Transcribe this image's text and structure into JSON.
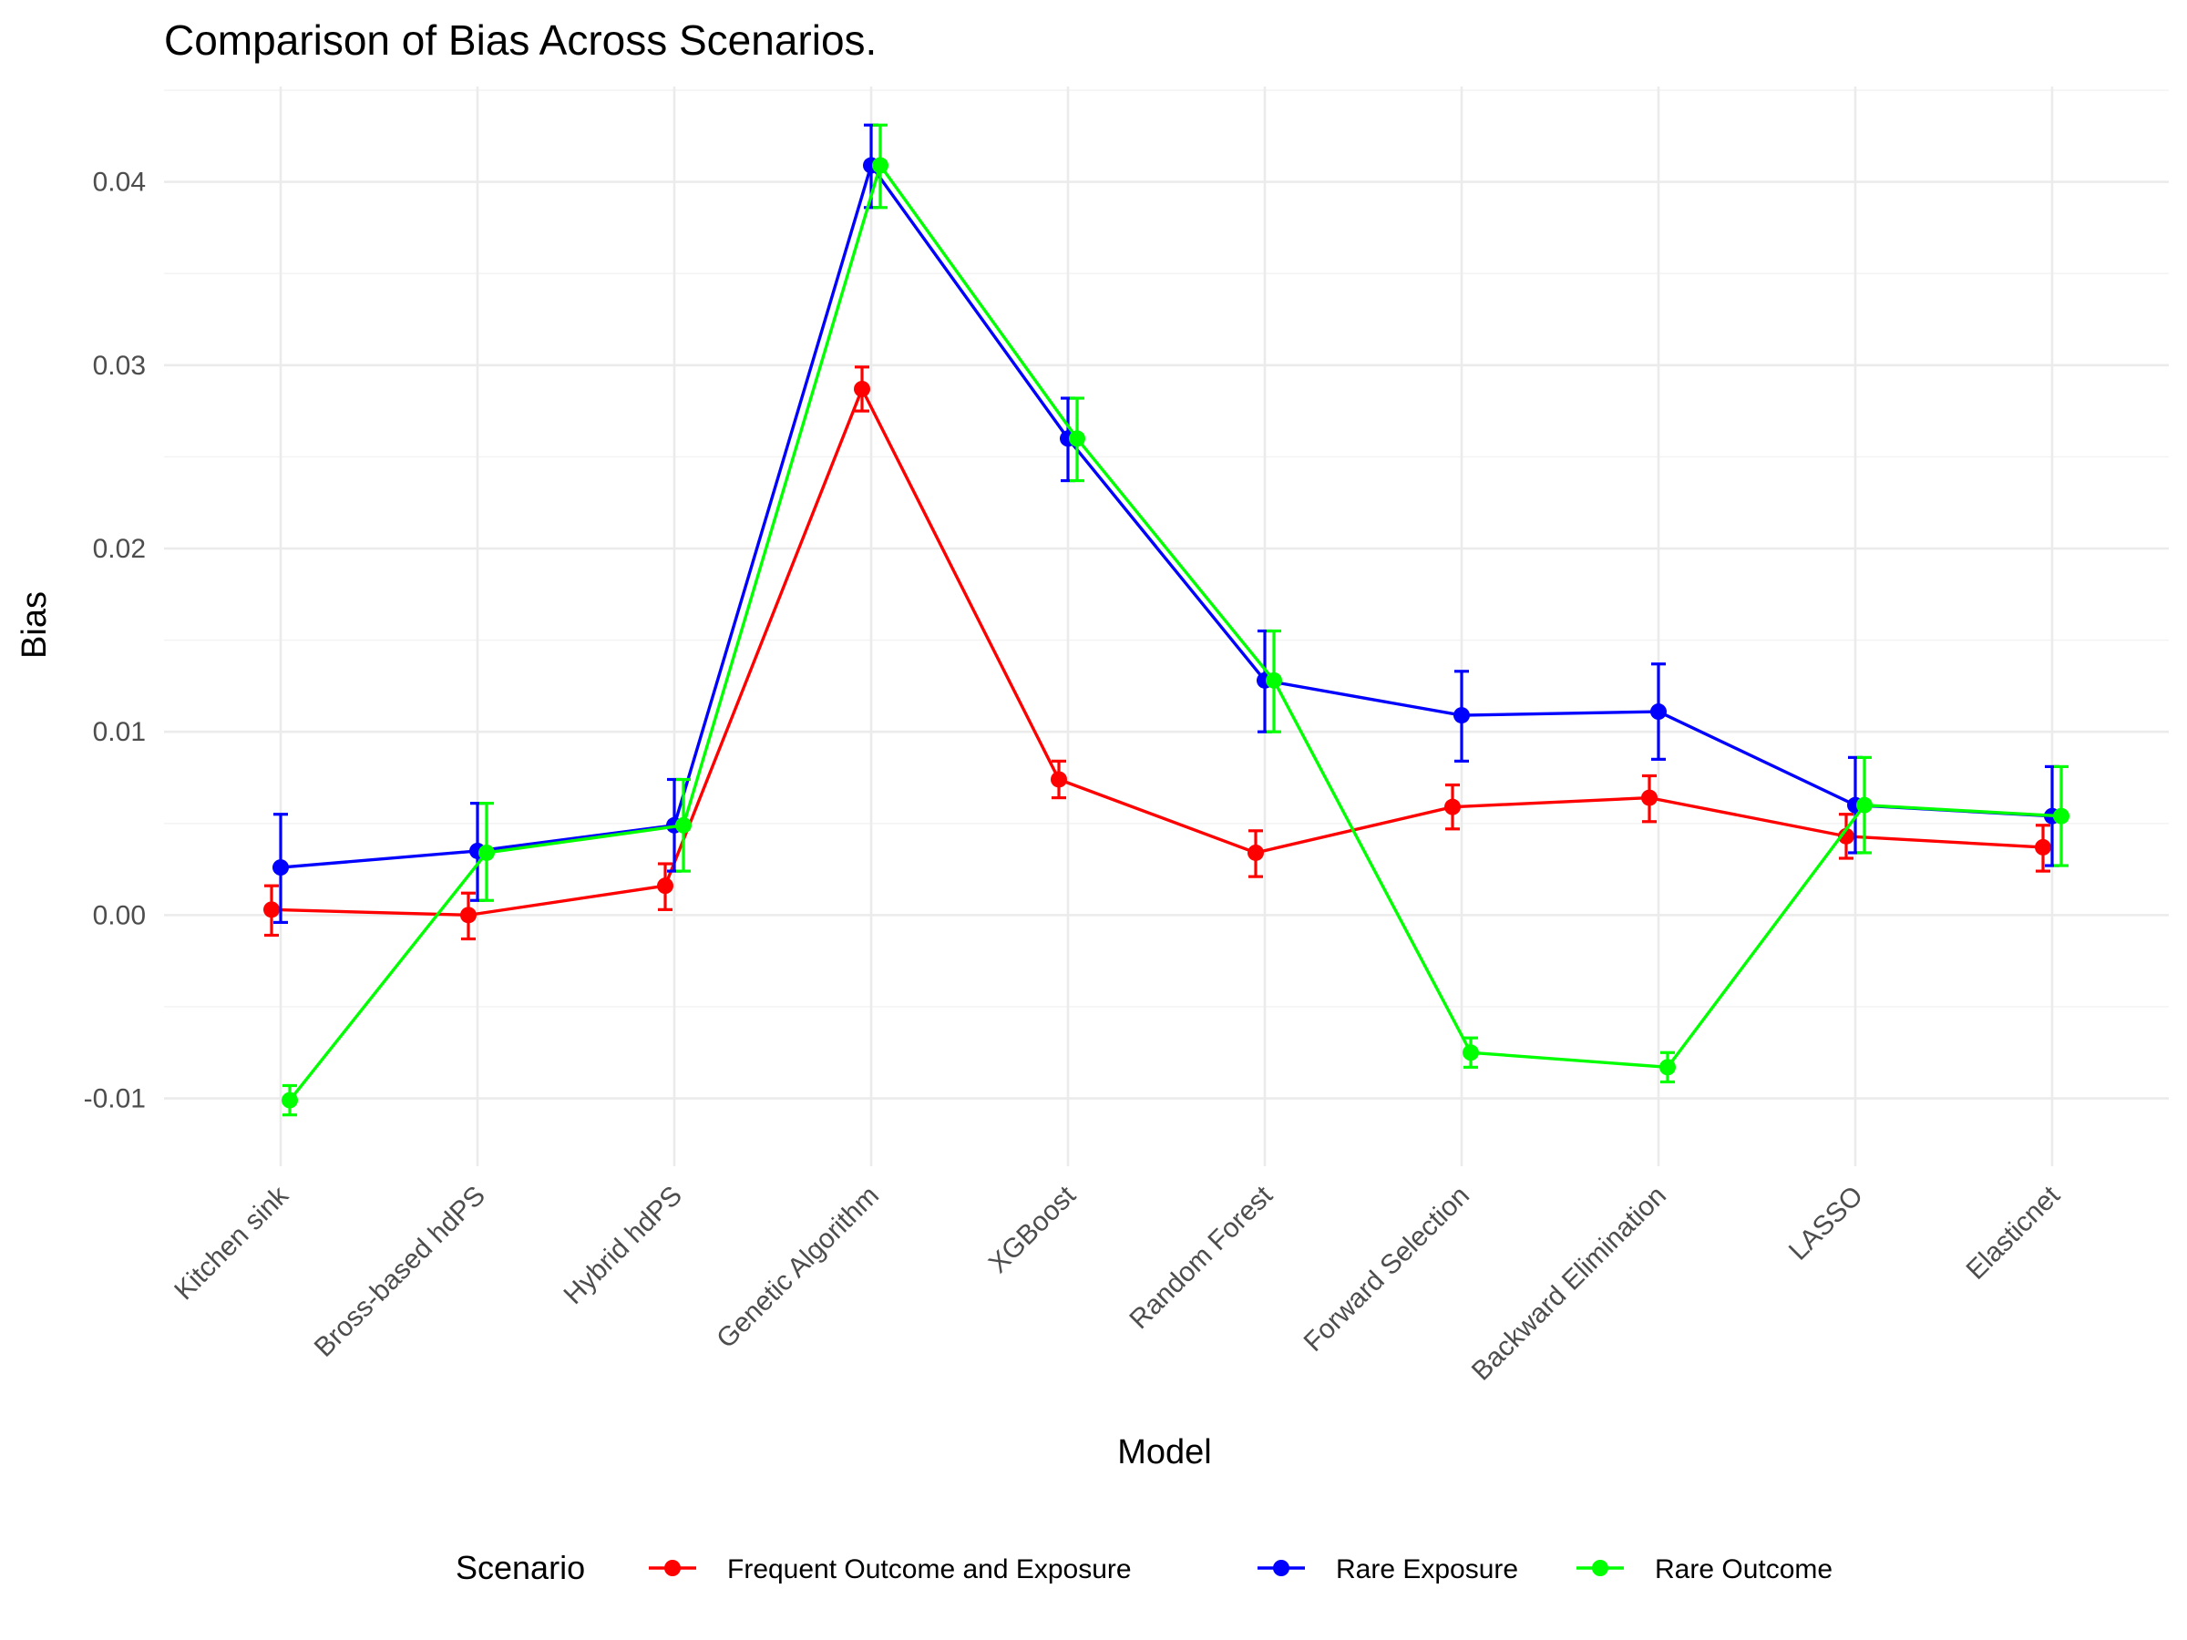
{
  "chart_data": {
    "type": "line",
    "title": "Comparison of Bias Across Scenarios.",
    "xlabel": "Model",
    "ylabel": "Bias",
    "ylim": [
      -0.0137,
      0.0452
    ],
    "y_ticks": [
      -0.01,
      0.0,
      0.01,
      0.02,
      0.03,
      0.04
    ],
    "y_tick_labels": [
      "-0.01",
      "0.00",
      "0.01",
      "0.02",
      "0.03",
      "0.04"
    ],
    "grid": true,
    "categories": [
      "Kitchen sink",
      "Bross-based hdPS",
      "Hybrid hdPS",
      "Genetic Algorithm",
      "XGBoost",
      "Random Forest",
      "Forward Selection",
      "Backward Elimination",
      "LASSO",
      "Elasticnet"
    ],
    "legend": {
      "title": "Scenario",
      "position": "bottom"
    },
    "series": [
      {
        "name": "Frequent Outcome and Exposure",
        "color": "#ff0000",
        "values": [
          0.0003,
          0.0,
          0.0016,
          0.0287,
          0.0074,
          0.0034,
          0.0059,
          0.0064,
          0.0043,
          0.0037
        ],
        "lower": [
          -0.0011,
          -0.0013,
          0.0003,
          0.0275,
          0.0064,
          0.0021,
          0.0047,
          0.0051,
          0.0031,
          0.0024
        ],
        "upper": [
          0.0016,
          0.0012,
          0.0028,
          0.0299,
          0.0084,
          0.0046,
          0.0071,
          0.0076,
          0.0055,
          0.0049
        ]
      },
      {
        "name": "Rare Exposure",
        "color": "#0000ff",
        "values": [
          0.0026,
          0.0035,
          0.0049,
          0.0409,
          0.026,
          0.0128,
          0.0109,
          0.0111,
          0.006,
          0.0054
        ],
        "lower": [
          -0.0004,
          0.0008,
          0.0024,
          0.0386,
          0.0237,
          0.01,
          0.0084,
          0.0085,
          0.0034,
          0.0027
        ],
        "upper": [
          0.0055,
          0.0061,
          0.0074,
          0.0431,
          0.0282,
          0.0155,
          0.0133,
          0.0137,
          0.0086,
          0.0081
        ]
      },
      {
        "name": "Rare Outcome",
        "color": "#00ff00",
        "values": [
          -0.0101,
          0.0034,
          0.0049,
          0.0409,
          0.026,
          0.0128,
          -0.0075,
          -0.0083,
          0.006,
          0.0054
        ],
        "lower": [
          -0.0109,
          0.0008,
          0.0024,
          0.0386,
          0.0237,
          0.01,
          -0.0083,
          -0.0091,
          0.0034,
          0.0027
        ],
        "upper": [
          -0.0093,
          0.0061,
          0.0074,
          0.0431,
          0.0282,
          0.0155,
          -0.0067,
          -0.0075,
          0.0086,
          0.0081
        ]
      }
    ]
  }
}
